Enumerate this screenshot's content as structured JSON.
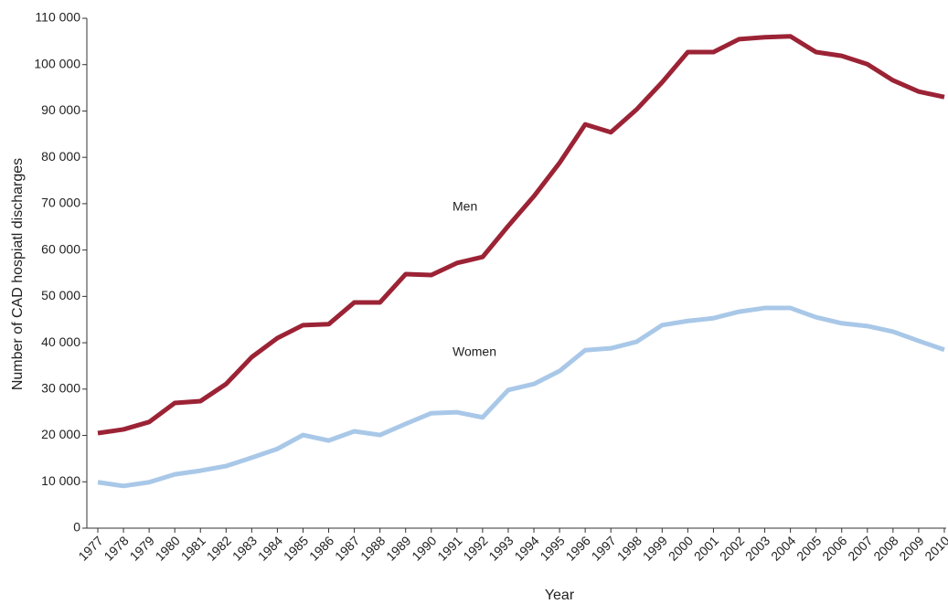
{
  "chart_data": {
    "type": "line",
    "x_label": "Year",
    "y_label": "Number of CAD hospiatl discharges",
    "categories": [
      "1977",
      "1978",
      "1979",
      "1980",
      "1981",
      "1982",
      "1983",
      "1984",
      "1985",
      "1986",
      "1987",
      "1988",
      "1989",
      "1990",
      "1991",
      "1992",
      "1993",
      "1994",
      "1995",
      "1996",
      "1997",
      "1998",
      "1999",
      "2000",
      "2001",
      "2002",
      "2003",
      "2004",
      "2005",
      "2006",
      "2007",
      "2008",
      "2009",
      "2010"
    ],
    "series": [
      {
        "name": "Men",
        "color": "#9b2335",
        "values": [
          20500,
          21300,
          22900,
          27000,
          27400,
          31100,
          36900,
          41000,
          43800,
          44000,
          48700,
          48700,
          54800,
          54600,
          57200,
          58500,
          65200,
          71600,
          78800,
          87100,
          85400,
          90300,
          96200,
          102700,
          102700,
          105500,
          105900,
          106100,
          102700,
          101900,
          100100,
          96600,
          94200,
          93000
        ]
      },
      {
        "name": "Women",
        "color": "#a9c8e8",
        "values": [
          9900,
          9100,
          9900,
          11600,
          12400,
          13400,
          15200,
          17100,
          20100,
          18900,
          20900,
          20100,
          22500,
          24800,
          25000,
          23900,
          29800,
          31100,
          33900,
          38400,
          38800,
          40200,
          43800,
          44700,
          45300,
          46700,
          47500,
          47500,
          45500,
          44200,
          43600,
          42400,
          40400,
          38500
        ]
      }
    ],
    "ylim": [
      0,
      110000
    ],
    "yticks": [
      0,
      {
        "value": 10000,
        "label": "10 000"
      },
      {
        "value": 20000,
        "label": "20 000"
      },
      {
        "value": 30000,
        "label": "30 000"
      },
      {
        "value": 40000,
        "label": "40 000"
      },
      {
        "value": 50000,
        "label": "50 000"
      },
      {
        "value": 60000,
        "label": "60 000"
      },
      {
        "value": 70000,
        "label": "70 000"
      },
      {
        "value": 80000,
        "label": "80 000"
      },
      {
        "value": 90000,
        "label": "90 000"
      },
      {
        "value": 100000,
        "label": "100 000"
      },
      {
        "value": 110000,
        "label": "110 000"
      }
    ],
    "grid": false
  }
}
